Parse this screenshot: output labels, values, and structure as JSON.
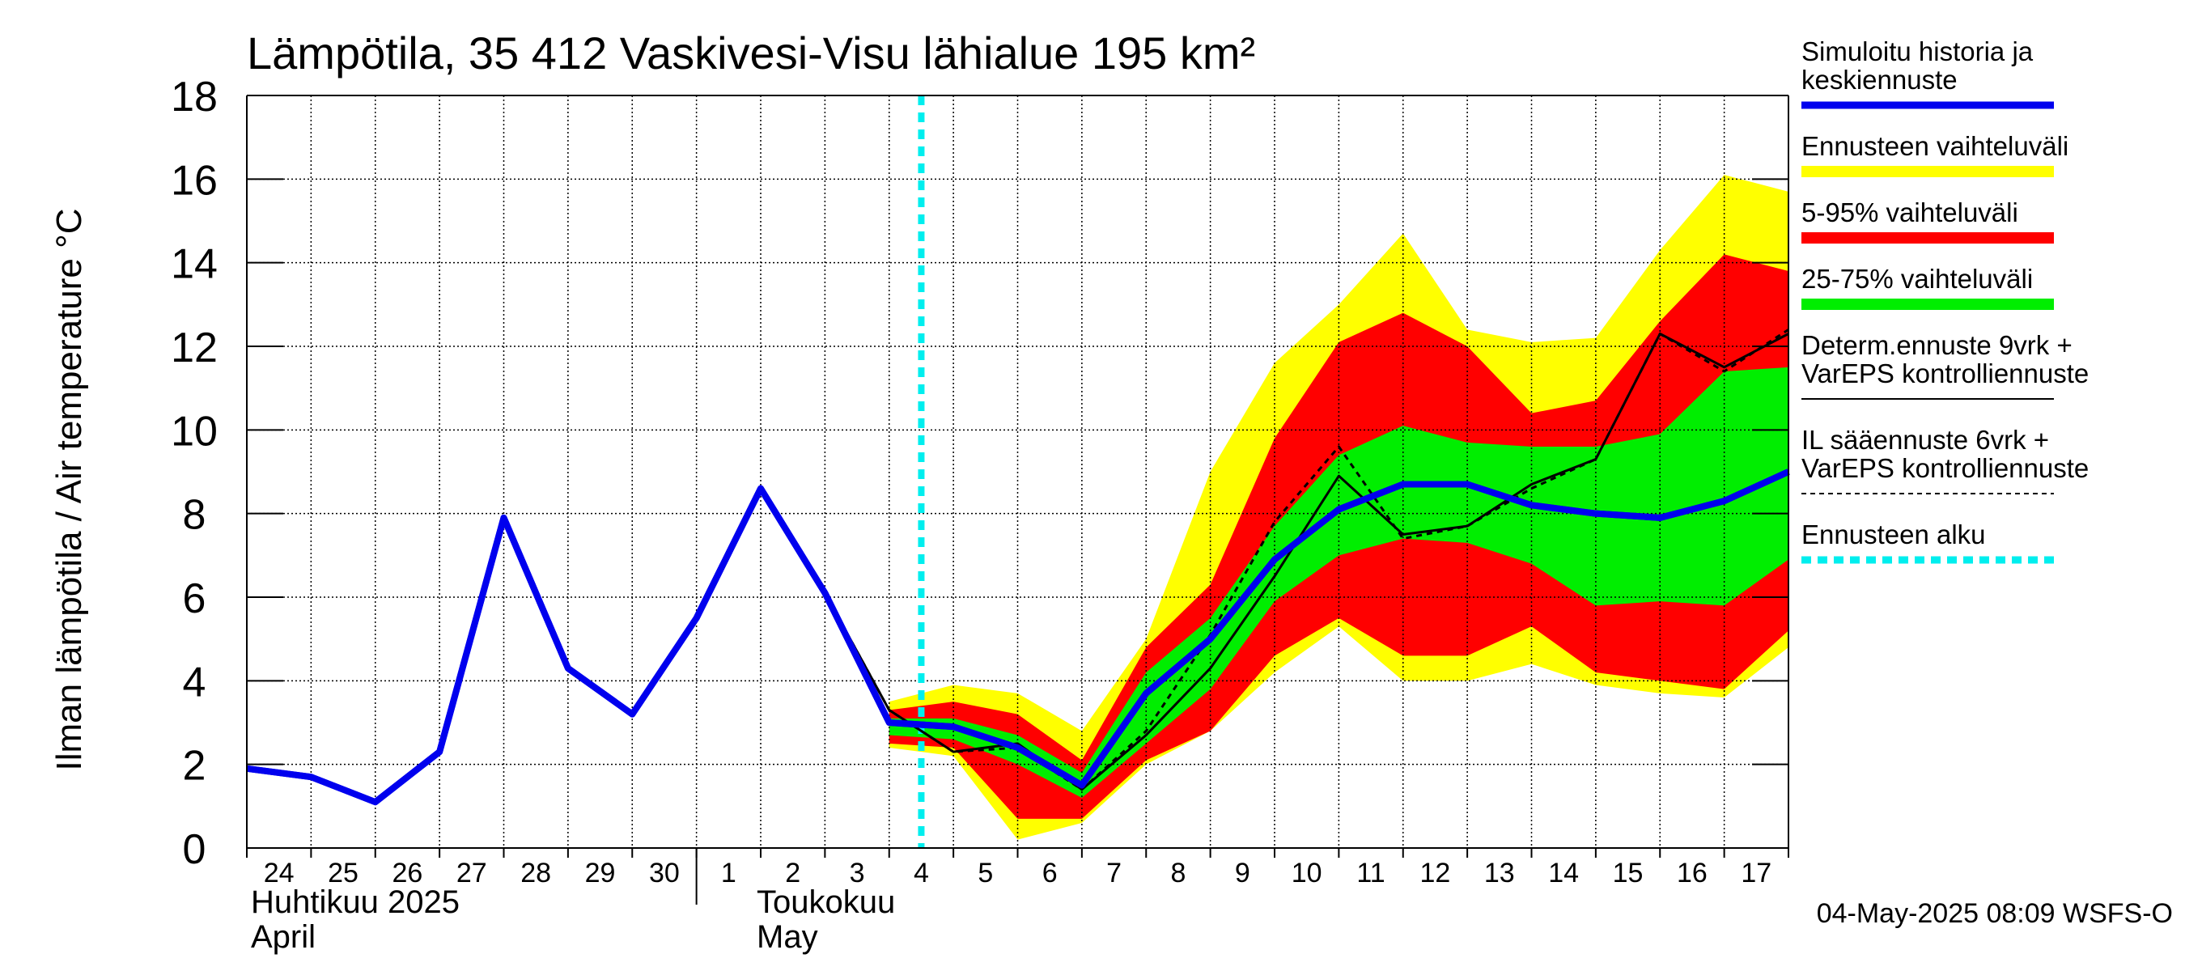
{
  "chart_data": {
    "type": "line",
    "title": "Lämpötila, 35 412 Vaskivesi-Visu lähialue 195 km²",
    "ylabel": "Ilman lämpötila / Air temperature    °C",
    "ylim": [
      0,
      18
    ],
    "yticks": [
      0,
      2,
      4,
      6,
      8,
      10,
      12,
      14,
      16,
      18
    ],
    "grid": true,
    "legend_position": "right",
    "x_day_labels": [
      "24",
      "25",
      "26",
      "27",
      "28",
      "29",
      "30",
      "1",
      "2",
      "3",
      "4",
      "5",
      "6",
      "7",
      "8",
      "9",
      "10",
      "11",
      "12",
      "13",
      "14",
      "15",
      "16",
      "17"
    ],
    "month_labels": [
      {
        "line1": "Huhtikuu  2025",
        "line2": "April"
      },
      {
        "line1": "Toukokuu",
        "line2": "May"
      }
    ],
    "forecast_start_day": 10.5,
    "colors": {
      "history": "#0000ee",
      "range_outer": "#ffff00",
      "range_5_95": "#ff0000",
      "range_25_75": "#00ee00",
      "deterministic": "#000000",
      "forecast_start": "#00eeee"
    },
    "series": [
      {
        "name": "Simuloitu historia ja keskiennuste",
        "style": "thick-blue",
        "points": [
          [
            0,
            1.9
          ],
          [
            1,
            1.7
          ],
          [
            2,
            1.1
          ],
          [
            3,
            2.3
          ],
          [
            4,
            7.9
          ],
          [
            5,
            4.3
          ],
          [
            6,
            3.2
          ],
          [
            7,
            5.5
          ],
          [
            8,
            8.6
          ],
          [
            9,
            6.1
          ],
          [
            10,
            3.0
          ],
          [
            11,
            2.9
          ],
          [
            12,
            2.4
          ],
          [
            13,
            1.5
          ],
          [
            14,
            3.7
          ],
          [
            15,
            5.0
          ],
          [
            16,
            6.9
          ],
          [
            17,
            8.1
          ],
          [
            18,
            8.7
          ],
          [
            19,
            8.7
          ],
          [
            20,
            8.2
          ],
          [
            21,
            8.0
          ],
          [
            22,
            7.9
          ],
          [
            23,
            8.3
          ],
          [
            24,
            9.0
          ]
        ]
      },
      {
        "name": "Determ.ennuste 9vrk + VarEPS kontrolliennuste",
        "style": "thin-solid",
        "points": [
          [
            8,
            8.6
          ],
          [
            9,
            6.1
          ],
          [
            10,
            3.3
          ],
          [
            11,
            2.3
          ],
          [
            12,
            2.5
          ],
          [
            13,
            1.4
          ],
          [
            14,
            2.7
          ],
          [
            15,
            4.3
          ],
          [
            16,
            6.5
          ],
          [
            17,
            8.9
          ],
          [
            18,
            7.5
          ],
          [
            19,
            7.7
          ],
          [
            20,
            8.7
          ],
          [
            21,
            9.3
          ],
          [
            22,
            12.3
          ],
          [
            23,
            11.5
          ],
          [
            24,
            12.3
          ]
        ]
      },
      {
        "name": "IL sääennuste 6vrk + VarEPS kontrolliennuste",
        "style": "thin-dashed",
        "points": [
          [
            8,
            8.6
          ],
          [
            9,
            6.1
          ],
          [
            10,
            3.3
          ],
          [
            11,
            2.3
          ],
          [
            12,
            2.4
          ],
          [
            13,
            1.4
          ],
          [
            14,
            2.8
          ],
          [
            15,
            5.1
          ],
          [
            16,
            7.8
          ],
          [
            17,
            9.6
          ],
          [
            18,
            7.4
          ],
          [
            19,
            7.7
          ],
          [
            20,
            8.6
          ],
          [
            21,
            9.3
          ],
          [
            22,
            12.3
          ],
          [
            23,
            11.4
          ],
          [
            24,
            12.4
          ]
        ]
      }
    ],
    "bands": [
      {
        "name": "Ennusteen vaihteluväli",
        "x": [
          10,
          11,
          12,
          13,
          14,
          15,
          16,
          17,
          18,
          19,
          20,
          21,
          22,
          23,
          24
        ],
        "low": [
          2.4,
          2.2,
          0.2,
          0.6,
          2.0,
          2.8,
          4.2,
          5.3,
          4.0,
          4.0,
          4.4,
          3.9,
          3.7,
          3.6,
          4.8
        ],
        "high": [
          3.5,
          3.9,
          3.7,
          2.8,
          5.0,
          9.0,
          11.6,
          13.0,
          14.7,
          12.4,
          12.1,
          12.2,
          14.3,
          16.1,
          15.7
        ]
      },
      {
        "name": "5-95% vaihteluväli",
        "x": [
          10,
          11,
          12,
          13,
          14,
          15,
          16,
          17,
          18,
          19,
          20,
          21,
          22,
          23,
          24
        ],
        "low": [
          2.5,
          2.4,
          0.7,
          0.7,
          2.1,
          2.8,
          4.6,
          5.5,
          4.6,
          4.6,
          5.3,
          4.2,
          4.0,
          3.8,
          5.2
        ],
        "high": [
          3.3,
          3.5,
          3.2,
          2.1,
          4.8,
          6.3,
          9.8,
          12.1,
          12.8,
          12.0,
          10.4,
          10.7,
          12.6,
          14.2,
          13.8
        ]
      },
      {
        "name": "25-75% vaihteluväli",
        "x": [
          10,
          11,
          12,
          13,
          14,
          15,
          16,
          17,
          18,
          19,
          20,
          21,
          22,
          23,
          24
        ],
        "low": [
          2.7,
          2.6,
          2.0,
          1.2,
          2.5,
          3.8,
          5.9,
          7.0,
          7.4,
          7.3,
          6.8,
          5.8,
          5.9,
          5.8,
          6.9
        ],
        "high": [
          3.1,
          3.1,
          2.7,
          1.8,
          4.2,
          5.5,
          7.7,
          9.4,
          10.1,
          9.7,
          9.6,
          9.6,
          9.9,
          11.4,
          11.5
        ]
      }
    ],
    "legend": [
      {
        "lines": [
          "Simuloitu historia ja",
          "keskiennuste"
        ],
        "swatch": "thick-blue",
        "color": "#0000ee"
      },
      {
        "lines": [
          "Ennusteen vaihteluväli"
        ],
        "swatch": "thick-band",
        "color": "#ffff00"
      },
      {
        "lines": [
          "5-95% vaihteluväli"
        ],
        "swatch": "thick-band",
        "color": "#ff0000"
      },
      {
        "lines": [
          "25-75% vaihteluväli"
        ],
        "swatch": "thick-band",
        "color": "#00ee00"
      },
      {
        "lines": [
          "Determ.ennuste 9vrk +",
          "VarEPS kontrolliennuste"
        ],
        "swatch": "thin-solid",
        "color": "#000000"
      },
      {
        "lines": [
          "IL sääennuste 6vrk  +",
          "  VarEPS kontrolliennuste"
        ],
        "swatch": "thin-dashed",
        "color": "#000000"
      },
      {
        "lines": [
          "Ennusteen alku"
        ],
        "swatch": "thick-dotted",
        "color": "#00eeee"
      }
    ],
    "footer": "04-May-2025 08:09 WSFS-O"
  }
}
